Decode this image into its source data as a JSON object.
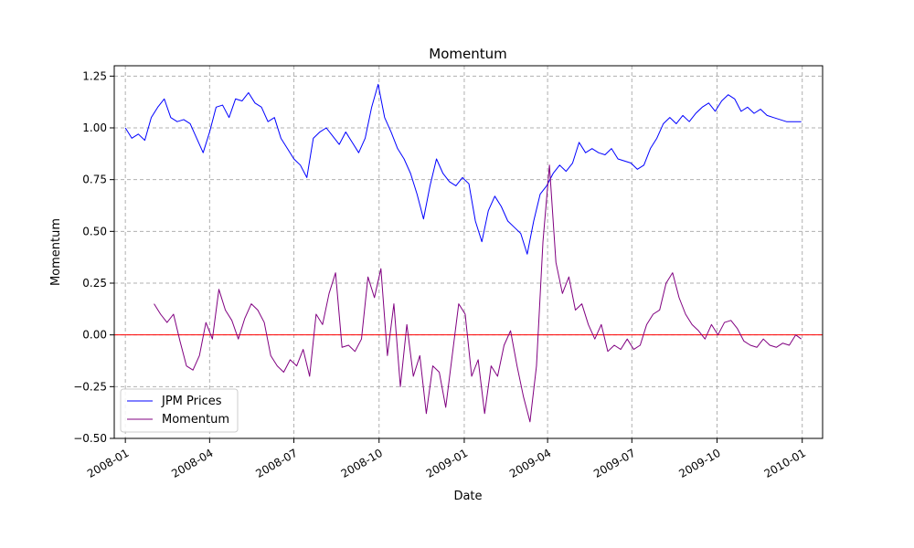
{
  "chart_data": {
    "type": "line",
    "title": "Momentum",
    "xlabel": "Date",
    "ylabel": "Momentum",
    "xlim": [
      "2007-12-20",
      "2010-01-23"
    ],
    "ylim": [
      -0.5,
      1.3
    ],
    "x_ticks": [
      "2008-01-01",
      "2008-04-01",
      "2008-07-01",
      "2008-10-01",
      "2009-01-01",
      "2009-04-01",
      "2009-07-01",
      "2009-10-01",
      "2010-01-01"
    ],
    "x_tick_labels": [
      "2008-01",
      "2008-04",
      "2008-07",
      "2008-10",
      "2009-01",
      "2009-04",
      "2009-07",
      "2009-10",
      "2010-01"
    ],
    "y_ticks": [
      -0.5,
      -0.25,
      0.0,
      0.25,
      0.5,
      0.75,
      1.0,
      1.25
    ],
    "y_tick_labels": [
      "−0.50",
      "−0.25",
      "0.00",
      "0.25",
      "0.50",
      "0.75",
      "1.00",
      "1.25"
    ],
    "grid": true,
    "legend_position": "lower-left",
    "reference_line": {
      "y": 0,
      "color": "#ff0000"
    },
    "series": [
      {
        "name": "JPM Prices",
        "color": "#0000ff",
        "points": [
          [
            "2008-01-01",
            1.0
          ],
          [
            "2008-01-08",
            0.95
          ],
          [
            "2008-01-15",
            0.97
          ],
          [
            "2008-01-22",
            0.94
          ],
          [
            "2008-01-29",
            1.05
          ],
          [
            "2008-02-05",
            1.1
          ],
          [
            "2008-02-12",
            1.14
          ],
          [
            "2008-02-19",
            1.05
          ],
          [
            "2008-02-26",
            1.03
          ],
          [
            "2008-03-04",
            1.04
          ],
          [
            "2008-03-11",
            1.02
          ],
          [
            "2008-03-18",
            0.95
          ],
          [
            "2008-03-25",
            0.88
          ],
          [
            "2008-04-01",
            0.98
          ],
          [
            "2008-04-08",
            1.1
          ],
          [
            "2008-04-15",
            1.11
          ],
          [
            "2008-04-22",
            1.05
          ],
          [
            "2008-04-29",
            1.14
          ],
          [
            "2008-05-06",
            1.13
          ],
          [
            "2008-05-13",
            1.17
          ],
          [
            "2008-05-20",
            1.12
          ],
          [
            "2008-05-27",
            1.1
          ],
          [
            "2008-06-03",
            1.03
          ],
          [
            "2008-06-10",
            1.05
          ],
          [
            "2008-06-17",
            0.95
          ],
          [
            "2008-06-24",
            0.9
          ],
          [
            "2008-07-01",
            0.85
          ],
          [
            "2008-07-08",
            0.82
          ],
          [
            "2008-07-15",
            0.76
          ],
          [
            "2008-07-22",
            0.95
          ],
          [
            "2008-07-29",
            0.98
          ],
          [
            "2008-08-05",
            1.0
          ],
          [
            "2008-08-12",
            0.96
          ],
          [
            "2008-08-19",
            0.92
          ],
          [
            "2008-08-26",
            0.98
          ],
          [
            "2008-09-02",
            0.93
          ],
          [
            "2008-09-09",
            0.88
          ],
          [
            "2008-09-16",
            0.95
          ],
          [
            "2008-09-23",
            1.1
          ],
          [
            "2008-09-30",
            1.21
          ],
          [
            "2008-10-07",
            1.05
          ],
          [
            "2008-10-14",
            0.98
          ],
          [
            "2008-10-21",
            0.9
          ],
          [
            "2008-10-28",
            0.85
          ],
          [
            "2008-11-04",
            0.78
          ],
          [
            "2008-11-11",
            0.68
          ],
          [
            "2008-11-18",
            0.56
          ],
          [
            "2008-11-25",
            0.72
          ],
          [
            "2008-12-02",
            0.85
          ],
          [
            "2008-12-09",
            0.78
          ],
          [
            "2008-12-16",
            0.74
          ],
          [
            "2008-12-23",
            0.72
          ],
          [
            "2008-12-30",
            0.76
          ],
          [
            "2009-01-06",
            0.73
          ],
          [
            "2009-01-13",
            0.55
          ],
          [
            "2009-01-20",
            0.45
          ],
          [
            "2009-01-27",
            0.6
          ],
          [
            "2009-02-03",
            0.67
          ],
          [
            "2009-02-10",
            0.62
          ],
          [
            "2009-02-17",
            0.55
          ],
          [
            "2009-02-24",
            0.52
          ],
          [
            "2009-03-03",
            0.49
          ],
          [
            "2009-03-10",
            0.39
          ],
          [
            "2009-03-17",
            0.55
          ],
          [
            "2009-03-24",
            0.68
          ],
          [
            "2009-03-31",
            0.72
          ],
          [
            "2009-04-07",
            0.78
          ],
          [
            "2009-04-14",
            0.82
          ],
          [
            "2009-04-21",
            0.79
          ],
          [
            "2009-04-28",
            0.83
          ],
          [
            "2009-05-05",
            0.93
          ],
          [
            "2009-05-12",
            0.88
          ],
          [
            "2009-05-19",
            0.9
          ],
          [
            "2009-05-26",
            0.88
          ],
          [
            "2009-06-02",
            0.87
          ],
          [
            "2009-06-09",
            0.9
          ],
          [
            "2009-06-16",
            0.85
          ],
          [
            "2009-06-23",
            0.84
          ],
          [
            "2009-06-30",
            0.83
          ],
          [
            "2009-07-07",
            0.8
          ],
          [
            "2009-07-14",
            0.82
          ],
          [
            "2009-07-21",
            0.9
          ],
          [
            "2009-07-28",
            0.95
          ],
          [
            "2009-08-04",
            1.02
          ],
          [
            "2009-08-11",
            1.05
          ],
          [
            "2009-08-18",
            1.02
          ],
          [
            "2009-08-25",
            1.06
          ],
          [
            "2009-09-01",
            1.03
          ],
          [
            "2009-09-08",
            1.07
          ],
          [
            "2009-09-15",
            1.1
          ],
          [
            "2009-09-22",
            1.12
          ],
          [
            "2009-09-29",
            1.08
          ],
          [
            "2009-10-06",
            1.13
          ],
          [
            "2009-10-13",
            1.16
          ],
          [
            "2009-10-20",
            1.14
          ],
          [
            "2009-10-27",
            1.08
          ],
          [
            "2009-11-03",
            1.1
          ],
          [
            "2009-11-10",
            1.07
          ],
          [
            "2009-11-17",
            1.09
          ],
          [
            "2009-11-24",
            1.06
          ],
          [
            "2009-12-01",
            1.05
          ],
          [
            "2009-12-08",
            1.04
          ],
          [
            "2009-12-15",
            1.03
          ],
          [
            "2009-12-22",
            1.03
          ],
          [
            "2009-12-31",
            1.03
          ]
        ]
      },
      {
        "name": "Momentum",
        "color": "#800080",
        "points": [
          [
            "2008-02-01",
            0.15
          ],
          [
            "2008-02-08",
            0.1
          ],
          [
            "2008-02-15",
            0.06
          ],
          [
            "2008-02-22",
            0.1
          ],
          [
            "2008-02-29",
            -0.03
          ],
          [
            "2008-03-07",
            -0.15
          ],
          [
            "2008-03-14",
            -0.17
          ],
          [
            "2008-03-21",
            -0.1
          ],
          [
            "2008-03-28",
            0.06
          ],
          [
            "2008-04-04",
            -0.02
          ],
          [
            "2008-04-11",
            0.22
          ],
          [
            "2008-04-18",
            0.12
          ],
          [
            "2008-04-25",
            0.07
          ],
          [
            "2008-05-02",
            -0.02
          ],
          [
            "2008-05-09",
            0.08
          ],
          [
            "2008-05-16",
            0.15
          ],
          [
            "2008-05-23",
            0.12
          ],
          [
            "2008-05-30",
            0.06
          ],
          [
            "2008-06-06",
            -0.1
          ],
          [
            "2008-06-13",
            -0.15
          ],
          [
            "2008-06-20",
            -0.18
          ],
          [
            "2008-06-27",
            -0.12
          ],
          [
            "2008-07-04",
            -0.15
          ],
          [
            "2008-07-11",
            -0.07
          ],
          [
            "2008-07-18",
            -0.2
          ],
          [
            "2008-07-25",
            0.1
          ],
          [
            "2008-08-01",
            0.05
          ],
          [
            "2008-08-08",
            0.2
          ],
          [
            "2008-08-15",
            0.3
          ],
          [
            "2008-08-22",
            -0.06
          ],
          [
            "2008-08-29",
            -0.05
          ],
          [
            "2008-09-05",
            -0.08
          ],
          [
            "2008-09-12",
            -0.02
          ],
          [
            "2008-09-19",
            0.28
          ],
          [
            "2008-09-26",
            0.18
          ],
          [
            "2008-10-03",
            0.32
          ],
          [
            "2008-10-10",
            -0.1
          ],
          [
            "2008-10-17",
            0.15
          ],
          [
            "2008-10-24",
            -0.25
          ],
          [
            "2008-10-31",
            0.05
          ],
          [
            "2008-11-07",
            -0.2
          ],
          [
            "2008-11-14",
            -0.1
          ],
          [
            "2008-11-21",
            -0.38
          ],
          [
            "2008-11-28",
            -0.15
          ],
          [
            "2008-12-05",
            -0.18
          ],
          [
            "2008-12-12",
            -0.35
          ],
          [
            "2008-12-19",
            -0.1
          ],
          [
            "2008-12-26",
            0.15
          ],
          [
            "2009-01-02",
            0.1
          ],
          [
            "2009-01-09",
            -0.2
          ],
          [
            "2009-01-16",
            -0.12
          ],
          [
            "2009-01-23",
            -0.38
          ],
          [
            "2009-01-30",
            -0.15
          ],
          [
            "2009-02-06",
            -0.2
          ],
          [
            "2009-02-13",
            -0.05
          ],
          [
            "2009-02-20",
            0.02
          ],
          [
            "2009-02-27",
            -0.15
          ],
          [
            "2009-03-06",
            -0.3
          ],
          [
            "2009-03-13",
            -0.42
          ],
          [
            "2009-03-20",
            -0.15
          ],
          [
            "2009-03-27",
            0.45
          ],
          [
            "2009-04-03",
            0.82
          ],
          [
            "2009-04-10",
            0.35
          ],
          [
            "2009-04-17",
            0.2
          ],
          [
            "2009-04-24",
            0.28
          ],
          [
            "2009-05-01",
            0.12
          ],
          [
            "2009-05-08",
            0.15
          ],
          [
            "2009-05-15",
            0.05
          ],
          [
            "2009-05-22",
            -0.02
          ],
          [
            "2009-05-29",
            0.05
          ],
          [
            "2009-06-05",
            -0.08
          ],
          [
            "2009-06-12",
            -0.05
          ],
          [
            "2009-06-19",
            -0.07
          ],
          [
            "2009-06-26",
            -0.02
          ],
          [
            "2009-07-03",
            -0.07
          ],
          [
            "2009-07-10",
            -0.05
          ],
          [
            "2009-07-17",
            0.05
          ],
          [
            "2009-07-24",
            0.1
          ],
          [
            "2009-07-31",
            0.12
          ],
          [
            "2009-08-07",
            0.25
          ],
          [
            "2009-08-14",
            0.3
          ],
          [
            "2009-08-21",
            0.18
          ],
          [
            "2009-08-28",
            0.1
          ],
          [
            "2009-09-04",
            0.05
          ],
          [
            "2009-09-11",
            0.02
          ],
          [
            "2009-09-18",
            -0.02
          ],
          [
            "2009-09-25",
            0.05
          ],
          [
            "2009-10-02",
            0.0
          ],
          [
            "2009-10-09",
            0.06
          ],
          [
            "2009-10-16",
            0.07
          ],
          [
            "2009-10-23",
            0.03
          ],
          [
            "2009-10-30",
            -0.03
          ],
          [
            "2009-11-06",
            -0.05
          ],
          [
            "2009-11-13",
            -0.06
          ],
          [
            "2009-11-20",
            -0.02
          ],
          [
            "2009-11-27",
            -0.05
          ],
          [
            "2009-12-04",
            -0.06
          ],
          [
            "2009-12-11",
            -0.04
          ],
          [
            "2009-12-18",
            -0.05
          ],
          [
            "2009-12-25",
            0.0
          ],
          [
            "2009-12-31",
            -0.02
          ]
        ]
      }
    ]
  }
}
